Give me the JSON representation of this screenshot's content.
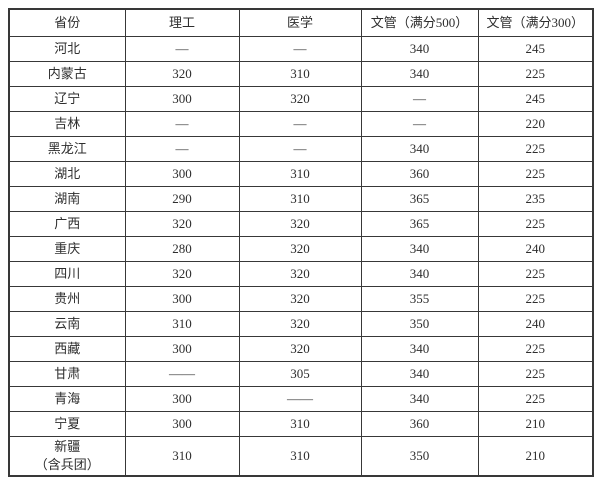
{
  "chart_data": {
    "type": "table",
    "columns": [
      "省份",
      "理工",
      "医学",
      "文管（满分500）",
      "文管（满分300）"
    ],
    "rows": [
      [
        "河北",
        "—",
        "—",
        "340",
        "245"
      ],
      [
        "内蒙古",
        "320",
        "310",
        "340",
        "225"
      ],
      [
        "辽宁",
        "300",
        "320",
        "—",
        "245"
      ],
      [
        "吉林",
        "—",
        "—",
        "—",
        "220"
      ],
      [
        "黑龙江",
        "—",
        "—",
        "340",
        "225"
      ],
      [
        "湖北",
        "300",
        "310",
        "360",
        "225"
      ],
      [
        "湖南",
        "290",
        "310",
        "365",
        "235"
      ],
      [
        "广西",
        "320",
        "320",
        "365",
        "225"
      ],
      [
        "重庆",
        "280",
        "320",
        "340",
        "240"
      ],
      [
        "四川",
        "320",
        "320",
        "340",
        "225"
      ],
      [
        "贵州",
        "300",
        "320",
        "355",
        "225"
      ],
      [
        "云南",
        "310",
        "320",
        "350",
        "240"
      ],
      [
        "西藏",
        "300",
        "320",
        "340",
        "225"
      ],
      [
        "甘肃",
        "——",
        "305",
        "340",
        "225"
      ],
      [
        "青海",
        "300",
        "——",
        "340",
        "225"
      ],
      [
        "宁夏",
        "300",
        "310",
        "360",
        "210"
      ],
      [
        "新疆\n（含兵团）",
        "310",
        "310",
        "350",
        "210"
      ]
    ],
    "layout": {
      "grid": "on",
      "border_color": "#383838",
      "background": "#ffffff",
      "text_color": "#2e2e2e"
    }
  }
}
